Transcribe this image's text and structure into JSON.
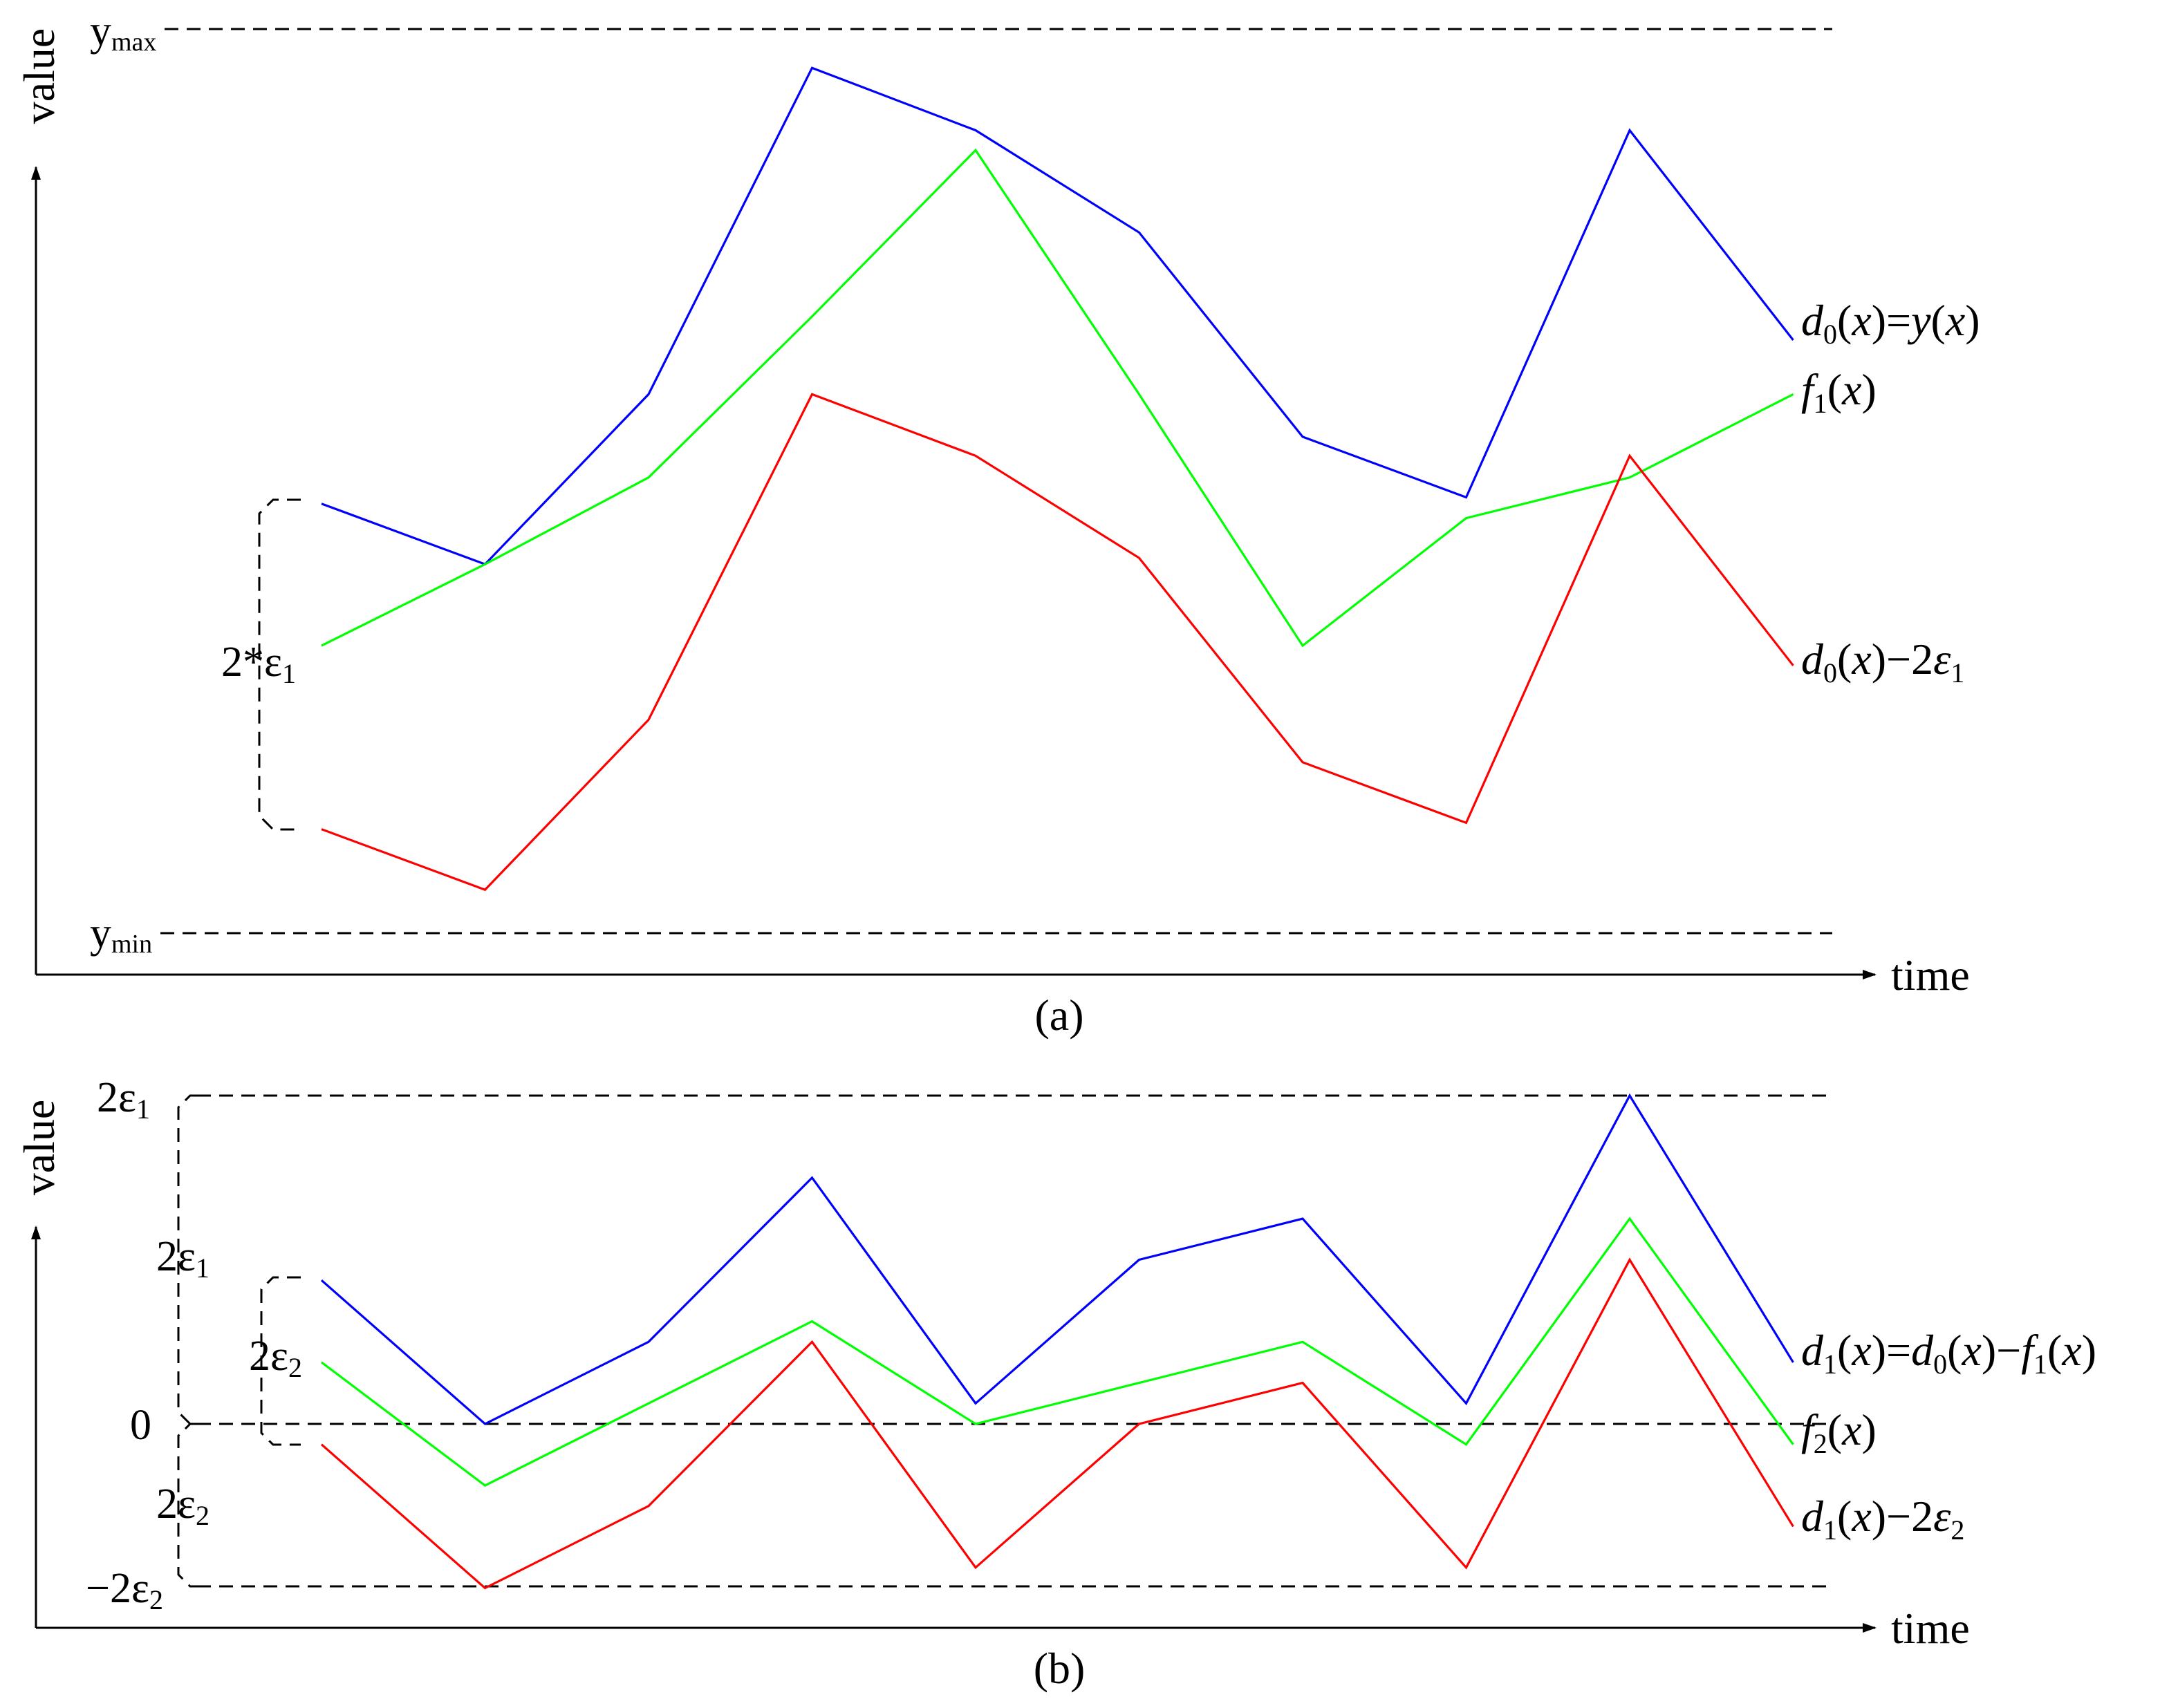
{
  "colors": {
    "blue": "#0000ff",
    "green": "#00ff00",
    "red": "#ff0000",
    "axis": "#000000"
  },
  "axis_titles": {
    "y": "value",
    "x": "time"
  },
  "chart_data": [
    {
      "type": "line",
      "panel_caption": "(a)",
      "ylabel": "value",
      "xlabel": "time",
      "x": [
        1,
        2,
        3,
        4,
        5,
        6,
        7,
        8,
        9,
        10
      ],
      "ylim": [
        0,
        100
      ],
      "reference_lines": [
        {
          "label": "y",
          "subscript": "max",
          "y": 100
        },
        {
          "label": "y",
          "subscript": "min",
          "y": 0
        }
      ],
      "bracket": {
        "text": "2*ε",
        "subscript": "1",
        "x": 1,
        "y_top": 47.5,
        "y_bottom": 11.5
      },
      "series": [
        {
          "name": "d0(x)=y(x)",
          "color": "#0000ff",
          "values": [
            47.5,
            40.8,
            59.6,
            95.7,
            88.8,
            77.5,
            54.9,
            48.2,
            88.8,
            65.6
          ],
          "legend": [
            {
              "t": "d",
              "style": "italic"
            },
            {
              "t": "0",
              "style": "sub"
            },
            {
              "t": "(",
              "style": "normal"
            },
            {
              "t": "x",
              "style": "italic"
            },
            {
              "t": ")=",
              "style": "normal"
            },
            {
              "t": "y",
              "style": "italic"
            },
            {
              "t": "(",
              "style": "normal"
            },
            {
              "t": "x",
              "style": "italic"
            },
            {
              "t": ")",
              "style": "normal"
            }
          ]
        },
        {
          "name": "f1(x)",
          "color": "#00ff00",
          "values": [
            31.8,
            40.8,
            50.4,
            68.2,
            86.6,
            59.6,
            31.8,
            45.9,
            50.4,
            59.6
          ],
          "legend": [
            {
              "t": "f",
              "style": "italic"
            },
            {
              "t": "1",
              "style": "sub"
            },
            {
              "t": "(",
              "style": "normal"
            },
            {
              "t": "x",
              "style": "italic"
            },
            {
              "t": ")",
              "style": "normal"
            }
          ]
        },
        {
          "name": "d0(x)−2ε1",
          "color": "#ff0000",
          "values": [
            11.5,
            4.8,
            23.6,
            59.6,
            52.8,
            41.5,
            18.9,
            12.2,
            52.8,
            29.6
          ],
          "legend": [
            {
              "t": "d",
              "style": "italic"
            },
            {
              "t": "0",
              "style": "sub"
            },
            {
              "t": "(",
              "style": "normal"
            },
            {
              "t": "x",
              "style": "italic"
            },
            {
              "t": ")−2",
              "style": "normal"
            },
            {
              "t": "ε",
              "style": "italic"
            },
            {
              "t": "1",
              "style": "sub"
            }
          ]
        }
      ]
    },
    {
      "type": "line",
      "panel_caption": "(b)",
      "ylabel": "value",
      "xlabel": "time",
      "x": [
        1,
        2,
        3,
        4,
        5,
        6,
        7,
        8,
        9,
        10
      ],
      "ylim": [
        -2,
        4
      ],
      "reference_lines": [
        {
          "label": "2ε",
          "subscript": "1",
          "y": 4
        },
        {
          "label": "0",
          "subscript": "",
          "y": 0
        },
        {
          "label": "−2ε",
          "subscript": "2",
          "y": -2
        }
      ],
      "brackets": [
        {
          "text": "2ε",
          "subscript": "1",
          "y_top": 4,
          "y_bottom": 0,
          "side": "left"
        },
        {
          "text": "2ε",
          "subscript": "2",
          "y_top": 0,
          "y_bottom": -2,
          "side": "left"
        },
        {
          "text": "2ε",
          "subscript": "2",
          "y_top": 1.75,
          "y_bottom": -0.25,
          "side": "inner"
        }
      ],
      "series": [
        {
          "name": "d1(x)=d0(x)−f1(x)",
          "color": "#0000ff",
          "values": [
            1.75,
            0.0,
            1.0,
            3.0,
            0.25,
            2.0,
            2.5,
            0.25,
            4.0,
            0.75
          ],
          "legend": [
            {
              "t": "d",
              "style": "italic"
            },
            {
              "t": "1",
              "style": "sub"
            },
            {
              "t": "(",
              "style": "normal"
            },
            {
              "t": "x",
              "style": "italic"
            },
            {
              "t": ")=",
              "style": "normal"
            },
            {
              "t": "d",
              "style": "italic"
            },
            {
              "t": "0",
              "style": "sub"
            },
            {
              "t": "(",
              "style": "normal"
            },
            {
              "t": "x",
              "style": "italic"
            },
            {
              "t": ")−",
              "style": "normal"
            },
            {
              "t": "f",
              "style": "italic"
            },
            {
              "t": "1",
              "style": "sub"
            },
            {
              "t": "(",
              "style": "normal"
            },
            {
              "t": "x",
              "style": "italic"
            },
            {
              "t": ")",
              "style": "normal"
            }
          ]
        },
        {
          "name": "f2(x)",
          "color": "#00ff00",
          "values": [
            0.75,
            -0.75,
            0.25,
            1.25,
            0.0,
            0.5,
            1.0,
            -0.25,
            2.5,
            -0.25
          ],
          "legend": [
            {
              "t": "f",
              "style": "italic"
            },
            {
              "t": "2",
              "style": "sub"
            },
            {
              "t": "(",
              "style": "normal"
            },
            {
              "t": "x",
              "style": "italic"
            },
            {
              "t": ")",
              "style": "normal"
            }
          ]
        },
        {
          "name": "d1(x)−2ε2",
          "color": "#ff0000",
          "values": [
            -0.25,
            -2.0,
            -1.0,
            1.0,
            -1.75,
            0.0,
            0.5,
            -1.75,
            2.0,
            -1.25
          ],
          "legend": [
            {
              "t": "d",
              "style": "italic"
            },
            {
              "t": "1",
              "style": "sub"
            },
            {
              "t": "(",
              "style": "normal"
            },
            {
              "t": "x",
              "style": "italic"
            },
            {
              "t": ")−2",
              "style": "normal"
            },
            {
              "t": "ε",
              "style": "italic"
            },
            {
              "t": "2",
              "style": "sub"
            }
          ]
        }
      ]
    }
  ]
}
